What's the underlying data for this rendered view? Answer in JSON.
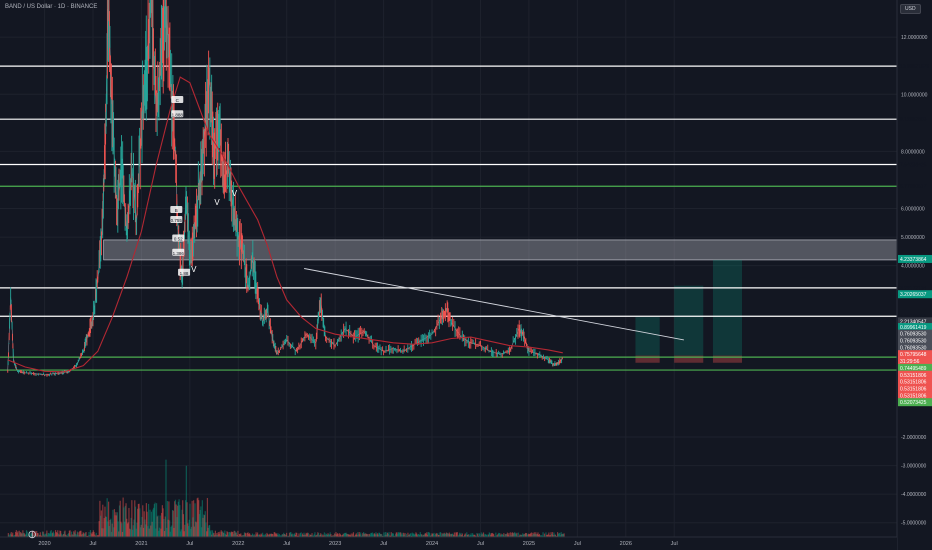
{
  "header": {
    "title": "BAND / US Dollar · 1D · BINANCE",
    "currency": "USD",
    "logo_icon": "tradingview-logo-icon"
  },
  "chart_data": {
    "type": "line",
    "title": "BAND / US Dollar · 1D · BINANCE",
    "ylim": [
      -5.5,
      13.3
    ],
    "y_ticks": [
      {
        "label": "12.0000000",
        "value": 12.0
      },
      {
        "label": "10.0000000",
        "value": 10.0
      },
      {
        "label": "8.0000000",
        "value": 8.0
      },
      {
        "label": "6.0000000",
        "value": 6.0
      },
      {
        "label": "5.0000000",
        "value": 5.0
      },
      {
        "label": "4.0000000",
        "value": 4.0
      },
      {
        "label": "-2.0000000",
        "value": -2.0
      },
      {
        "label": "-3.0000000",
        "value": -3.0
      },
      {
        "label": "-4.0000000",
        "value": -4.0
      },
      {
        "label": "-5.0000000",
        "value": -5.0
      }
    ],
    "x_ticks": [
      {
        "label": "2020",
        "t": 2020.0
      },
      {
        "label": "Jul",
        "t": 2020.5
      },
      {
        "label": "2021",
        "t": 2021.0
      },
      {
        "label": "Jul",
        "t": 2021.5
      },
      {
        "label": "2022",
        "t": 2022.0
      },
      {
        "label": "Jul",
        "t": 2022.5
      },
      {
        "label": "2023",
        "t": 2023.0
      },
      {
        "label": "Jul",
        "t": 2023.5
      },
      {
        "label": "2024",
        "t": 2024.0
      },
      {
        "label": "Jul",
        "t": 2024.5
      },
      {
        "label": "2025",
        "t": 2025.0
      },
      {
        "label": "Jul",
        "t": 2025.5
      },
      {
        "label": "2026",
        "t": 2026.0
      },
      {
        "label": "Jul",
        "t": 2026.5
      }
    ],
    "xlim": [
      2019.54,
      2028.8
    ],
    "price_series": [
      [
        2019.62,
        0.3
      ],
      [
        2019.65,
        2.9
      ],
      [
        2019.68,
        0.7
      ],
      [
        2019.72,
        0.3
      ],
      [
        2019.8,
        0.25
      ],
      [
        2019.9,
        0.22
      ],
      [
        2020.0,
        0.18
      ],
      [
        2020.1,
        0.22
      ],
      [
        2020.18,
        0.25
      ],
      [
        2020.25,
        0.3
      ],
      [
        2020.33,
        0.5
      ],
      [
        2020.4,
        1.0
      ],
      [
        2020.45,
        1.6
      ],
      [
        2020.5,
        2.2
      ],
      [
        2020.55,
        3.5
      ],
      [
        2020.6,
        5.5
      ],
      [
        2020.63,
        8.8
      ],
      [
        2020.66,
        13.3
      ],
      [
        2020.7,
        9.0
      ],
      [
        2020.75,
        6.0
      ],
      [
        2020.8,
        7.5
      ],
      [
        2020.85,
        5.0
      ],
      [
        2020.9,
        7.5
      ],
      [
        2020.95,
        5.5
      ],
      [
        2021.0,
        9.0
      ],
      [
        2021.05,
        11.0
      ],
      [
        2021.1,
        13.3
      ],
      [
        2021.15,
        9.5
      ],
      [
        2021.2,
        11.0
      ],
      [
        2021.25,
        13.3
      ],
      [
        2021.3,
        10.5
      ],
      [
        2021.35,
        8.0
      ],
      [
        2021.38,
        5.0
      ],
      [
        2021.42,
        3.5
      ],
      [
        2021.46,
        6.5
      ],
      [
        2021.5,
        4.2
      ],
      [
        2021.55,
        5.2
      ],
      [
        2021.6,
        7.0
      ],
      [
        2021.65,
        8.5
      ],
      [
        2021.7,
        10.5
      ],
      [
        2021.75,
        8.0
      ],
      [
        2021.8,
        9.0
      ],
      [
        2021.85,
        7.0
      ],
      [
        2021.9,
        7.5
      ],
      [
        2021.95,
        6.0
      ],
      [
        2022.0,
        5.0
      ],
      [
        2022.05,
        4.5
      ],
      [
        2022.1,
        3.2
      ],
      [
        2022.15,
        4.2
      ],
      [
        2022.2,
        3.0
      ],
      [
        2022.25,
        2.0
      ],
      [
        2022.3,
        2.5
      ],
      [
        2022.35,
        1.5
      ],
      [
        2022.4,
        0.9
      ],
      [
        2022.5,
        1.4
      ],
      [
        2022.6,
        1.0
      ],
      [
        2022.7,
        1.6
      ],
      [
        2022.8,
        1.3
      ],
      [
        2022.85,
        2.8
      ],
      [
        2022.9,
        1.5
      ],
      [
        2023.0,
        1.2
      ],
      [
        2023.1,
        1.8
      ],
      [
        2023.2,
        1.5
      ],
      [
        2023.3,
        1.7
      ],
      [
        2023.4,
        1.2
      ],
      [
        2023.5,
        1.0
      ],
      [
        2023.6,
        1.1
      ],
      [
        2023.7,
        1.0
      ],
      [
        2023.8,
        1.2
      ],
      [
        2023.9,
        1.4
      ],
      [
        2024.0,
        1.6
      ],
      [
        2024.1,
        2.2
      ],
      [
        2024.15,
        2.5
      ],
      [
        2024.2,
        2.0
      ],
      [
        2024.3,
        1.5
      ],
      [
        2024.4,
        1.3
      ],
      [
        2024.5,
        1.2
      ],
      [
        2024.6,
        1.0
      ],
      [
        2024.7,
        0.9
      ],
      [
        2024.8,
        1.0
      ],
      [
        2024.9,
        1.8
      ],
      [
        2024.95,
        1.5
      ],
      [
        2025.0,
        1.0
      ],
      [
        2025.1,
        0.9
      ],
      [
        2025.2,
        0.7
      ],
      [
        2025.25,
        0.55
      ],
      [
        2025.3,
        0.6
      ],
      [
        2025.35,
        0.75
      ]
    ],
    "ma_series": [
      [
        2019.62,
        0.7
      ],
      [
        2019.8,
        0.45
      ],
      [
        2020.0,
        0.3
      ],
      [
        2020.2,
        0.28
      ],
      [
        2020.4,
        0.5
      ],
      [
        2020.55,
        1.0
      ],
      [
        2020.7,
        2.2
      ],
      [
        2020.85,
        3.6
      ],
      [
        2021.0,
        5.2
      ],
      [
        2021.15,
        7.5
      ],
      [
        2021.3,
        9.5
      ],
      [
        2021.4,
        10.6
      ],
      [
        2021.5,
        10.4
      ],
      [
        2021.6,
        9.5
      ],
      [
        2021.7,
        8.6
      ],
      [
        2021.85,
        7.8
      ],
      [
        2022.0,
        6.8
      ],
      [
        2022.1,
        6.2
      ],
      [
        2022.2,
        5.6
      ],
      [
        2022.3,
        4.7
      ],
      [
        2022.4,
        3.6
      ],
      [
        2022.5,
        2.8
      ],
      [
        2022.65,
        2.2
      ],
      [
        2022.8,
        1.8
      ],
      [
        2023.0,
        1.6
      ],
      [
        2023.2,
        1.5
      ],
      [
        2023.4,
        1.4
      ],
      [
        2023.6,
        1.3
      ],
      [
        2023.8,
        1.25
      ],
      [
        2024.0,
        1.3
      ],
      [
        2024.2,
        1.45
      ],
      [
        2024.4,
        1.5
      ],
      [
        2024.6,
        1.35
      ],
      [
        2024.8,
        1.2
      ],
      [
        2025.0,
        1.15
      ],
      [
        2025.2,
        1.05
      ],
      [
        2025.35,
        0.95
      ]
    ],
    "trendline": {
      "from": [
        2022.68,
        3.9
      ],
      "to": [
        2026.6,
        1.4
      ]
    },
    "support_zone": {
      "low": 4.2,
      "high": 4.9
    },
    "horizontal_levels": [
      {
        "label": "10.98521676",
        "value": 10.985,
        "color": "#ffffff"
      },
      {
        "label": "9.12682803",
        "value": 9.127,
        "color": "#ffffff"
      },
      {
        "label": "7.54238425",
        "value": 7.542,
        "color": "#ffffff"
      },
      {
        "label": "6.77990517",
        "value": 6.78,
        "color": "#4caf50"
      },
      {
        "label": "3.22172134",
        "value": 3.222,
        "color": "#ffffff"
      },
      {
        "label": "2.22789031",
        "value": 2.228,
        "color": "#ffffff"
      },
      {
        "label": "0.79595648",
        "value": 0.796,
        "color": "#4caf50"
      },
      {
        "label": "0.34495489",
        "value": 0.345,
        "color": "#4caf50"
      }
    ],
    "price_labels": [
      {
        "label": "4.23373864",
        "value": 4.234,
        "color": "#089981"
      },
      {
        "label": "3.20265037",
        "value": 3.0,
        "color": "#089981"
      },
      {
        "label": "2.21340547",
        "value": 2.05,
        "color": "#363a45"
      },
      {
        "label": "0.89961419",
        "value": 1.85,
        "color": "#089981"
      },
      {
        "label": "0.76093530",
        "value": 1.62,
        "color": "#4a4e59"
      },
      {
        "label": "0.76093530",
        "value": 1.38,
        "color": "#4a4e59"
      },
      {
        "label": "0.76093530",
        "value": 1.14,
        "color": "#4a4e59"
      },
      {
        "label": "0.75795648",
        "value": 0.9,
        "color": "#ef5350"
      },
      {
        "label": "31:29:56",
        "value": 0.66,
        "color": "#ef5350"
      },
      {
        "label": "0.74495489",
        "value": 0.42,
        "color": "#4caf50"
      },
      {
        "label": "0.53151806",
        "value": 0.18,
        "color": "#ef5350"
      },
      {
        "label": "0.53151806",
        "value": -0.06,
        "color": "#ef5350"
      },
      {
        "label": "0.53151806",
        "value": -0.3,
        "color": "#ef5350"
      },
      {
        "label": "0.53151806",
        "value": -0.54,
        "color": "#ef5350"
      },
      {
        "label": "0.52073425",
        "value": -0.78,
        "color": "#4caf50"
      }
    ],
    "target_boxes": [
      {
        "t0": 2026.1,
        "t1": 2026.35,
        "top": 2.2,
        "bottom": 0.6
      },
      {
        "t0": 2026.5,
        "t1": 2026.8,
        "top": 3.3,
        "bottom": 0.6
      },
      {
        "t0": 2026.9,
        "t1": 2027.2,
        "top": 4.2,
        "bottom": 0.6
      }
    ],
    "annotations": [
      {
        "text": "C",
        "t": 2021.37,
        "y": 9.8
      },
      {
        "text": "1.888",
        "t": 2021.37,
        "y": 9.3
      },
      {
        "text": "B",
        "t": 2021.36,
        "y": 5.95
      },
      {
        "text": "0.755",
        "t": 2021.36,
        "y": 5.6
      },
      {
        "text": "0.52",
        "t": 2021.38,
        "y": 4.95
      },
      {
        "text": "1.386",
        "t": 2021.38,
        "y": 4.45
      },
      {
        "text": "1.88",
        "t": 2021.44,
        "y": 3.75
      },
      {
        "text": "V",
        "t": 2021.54,
        "y": 3.85
      },
      {
        "text": "V",
        "t": 2021.78,
        "y": 6.2
      },
      {
        "text": "V",
        "t": 2021.96,
        "y": 6.5
      }
    ],
    "volume": {
      "max": 1.0
    }
  }
}
